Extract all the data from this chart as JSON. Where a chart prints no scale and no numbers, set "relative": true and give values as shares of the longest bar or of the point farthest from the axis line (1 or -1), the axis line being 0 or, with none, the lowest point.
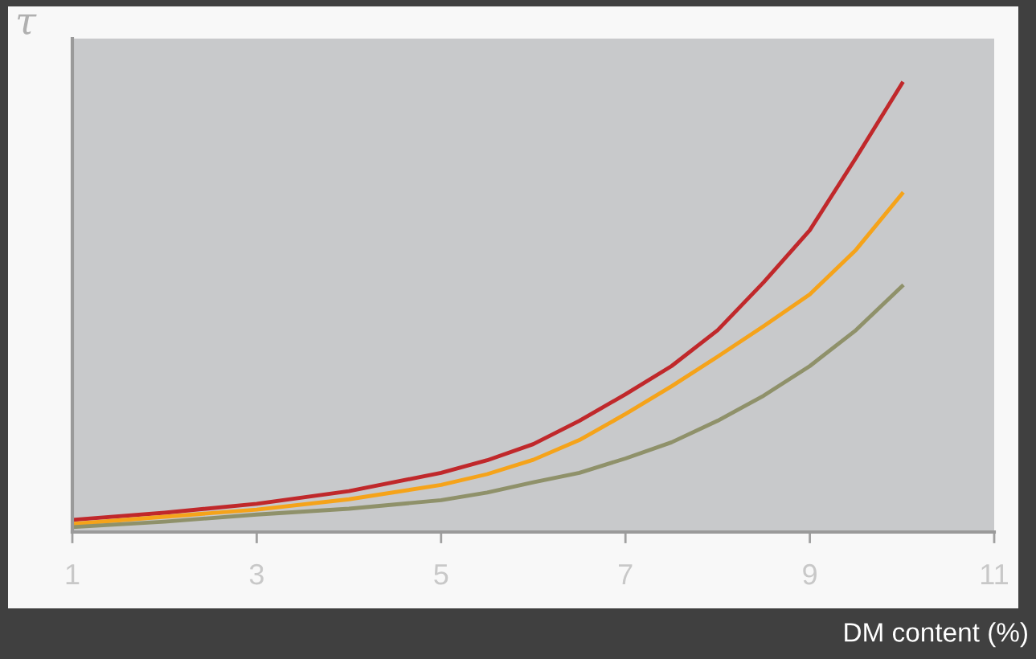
{
  "chart_data": {
    "type": "line",
    "relative": true,
    "xlabel": "DM content (%)",
    "ylabel": "τ",
    "xlim": [
      1,
      11
    ],
    "xticks": [
      1,
      3,
      5,
      7,
      9,
      11
    ],
    "grid": false,
    "legend": false,
    "x": [
      1,
      2,
      3,
      4,
      5,
      5.5,
      6,
      6.5,
      7,
      7.5,
      8,
      8.5,
      9,
      9.5,
      10
    ],
    "series": [
      {
        "color": "#c0282b",
        "values": [
          0.027,
          0.043,
          0.063,
          0.091,
          0.132,
          0.16,
          0.196,
          0.248,
          0.307,
          0.37,
          0.45,
          0.557,
          0.673,
          0.834,
          1.0
        ]
      },
      {
        "color": "#f5a31a",
        "values": [
          0.018,
          0.034,
          0.05,
          0.073,
          0.105,
          0.129,
          0.161,
          0.205,
          0.263,
          0.325,
          0.391,
          0.459,
          0.53,
          0.629,
          0.754
        ]
      },
      {
        "color": "#8f916a",
        "values": [
          0.011,
          0.023,
          0.039,
          0.052,
          0.071,
          0.088,
          0.111,
          0.132,
          0.164,
          0.2,
          0.248,
          0.304,
          0.37,
          0.45,
          0.548
        ]
      }
    ]
  }
}
